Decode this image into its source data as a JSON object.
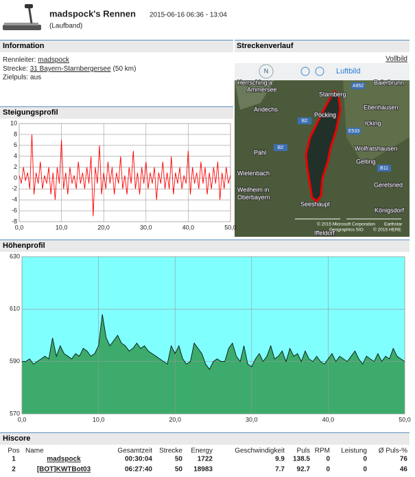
{
  "header": {
    "title": "madspock's Rennen",
    "time": "2015-06-16 06:36 - 13:04",
    "subtitle": "(Laufband)"
  },
  "information": {
    "title": "Information",
    "leader_label": "Rennleiter:",
    "leader": "madspock",
    "route_label": "Strecke:",
    "route": "31 Bayern-Starnbergersee",
    "route_length": "(50 km)",
    "target_pulse": "Zielpuls: aus"
  },
  "map": {
    "title": "Streckenverlauf",
    "fullscreen": "Vollbild",
    "compass": "N",
    "view": "Luftbild",
    "labels": [
      "Herrsching a.",
      "Ammersee",
      "Starnberg",
      "Baierbrunn",
      "Andechs",
      "Pöcking",
      "Ebenhausen",
      "Icking",
      "Wolfratshausen",
      "Pähl",
      "Gelting",
      "Wielenbach",
      "Weilheim in",
      "Oberbayern",
      "Geretsried",
      "Seeshaupt",
      "Königsdorf",
      "Iffeldorf"
    ],
    "roads": [
      "A952",
      "B2",
      "E533",
      "B2",
      "B11"
    ],
    "copyright": [
      "© 2015 Microsoft Corporation",
      "Earthstar",
      "Geographics SIO",
      "© 2015 HERE"
    ]
  },
  "chart_data": [
    {
      "type": "line",
      "title": "Steigungsprofil",
      "color": "#ff0000",
      "grid": true,
      "x": [
        0,
        0.5,
        1,
        1.5,
        2,
        2.5,
        3,
        3.5,
        4,
        4.5,
        5,
        5.5,
        6,
        6.5,
        7,
        7.5,
        8,
        8.5,
        9,
        9.5,
        10,
        10.5,
        11,
        11.5,
        12,
        12.5,
        13,
        13.5,
        14,
        14.5,
        15,
        15.5,
        16,
        16.5,
        17,
        17.5,
        18,
        18.5,
        19,
        19.5,
        20,
        20.5,
        21,
        21.5,
        22,
        22.5,
        23,
        23.5,
        24,
        24.5,
        25,
        25.5,
        26,
        26.5,
        27,
        27.5,
        28,
        28.5,
        29,
        29.5,
        30,
        30.5,
        31,
        31.5,
        32,
        32.5,
        33,
        33.5,
        34,
        34.5,
        35,
        35.5,
        36,
        36.5,
        37,
        37.5,
        38,
        38.5,
        39,
        39.5,
        40,
        40.5,
        41,
        41.5,
        42,
        42.5,
        43,
        43.5,
        44,
        44.5,
        45,
        45.5,
        46,
        46.5,
        47,
        47.5,
        48,
        48.5,
        49,
        49.5,
        50
      ],
      "values": [
        0.5,
        -1,
        2,
        -0.5,
        1,
        -2,
        8,
        -3,
        1,
        -1,
        3,
        -2,
        0.5,
        -1,
        2,
        -3,
        1,
        -4,
        2,
        -1,
        7,
        -2,
        1,
        -3,
        2,
        -1,
        0.5,
        -2,
        3,
        -1,
        1,
        -2,
        2,
        -1,
        4,
        -7,
        2,
        -1,
        6,
        -3,
        1,
        -2,
        3,
        -1,
        2,
        -3,
        1,
        -1,
        4,
        -2,
        0.5,
        -3,
        2,
        -1,
        5,
        -2,
        1,
        -3,
        2,
        -1,
        3,
        -2,
        1,
        -1,
        2,
        -4,
        1,
        -1,
        3,
        -2,
        1,
        -2,
        4,
        -3,
        1,
        -1,
        2,
        -2,
        0.5,
        -1,
        5,
        -3,
        2,
        -1,
        1,
        -2,
        3,
        -1,
        2,
        -3,
        1,
        -2,
        2,
        -1,
        3,
        -4,
        1,
        -2,
        2,
        -1,
        0.5
      ],
      "xlim": [
        0,
        50
      ],
      "ylim": [
        -8,
        10
      ],
      "xticks": [
        {
          "value": 0,
          "label": "0,0"
        },
        {
          "value": 10,
          "label": "10,0"
        },
        {
          "value": 20,
          "label": "20,0"
        },
        {
          "value": 30,
          "label": "30,0"
        },
        {
          "value": 40,
          "label": "40,0"
        },
        {
          "value": 50,
          "label": "50,0"
        }
      ],
      "yticks": [
        -8,
        -6,
        -4,
        -2,
        0,
        2,
        4,
        6,
        8,
        10
      ]
    },
    {
      "type": "area",
      "title": "Höhenprofil",
      "color": "#3cab6c",
      "background": "#80ffff",
      "grid": true,
      "x": [
        0,
        0.5,
        1,
        1.5,
        2,
        2.5,
        3,
        3.5,
        4,
        4.5,
        5,
        5.5,
        6,
        6.5,
        7,
        7.5,
        8,
        8.5,
        9,
        9.5,
        10,
        10.5,
        11,
        11.5,
        12,
        12.5,
        13,
        13.5,
        14,
        14.5,
        15,
        15.5,
        16,
        16.5,
        17,
        17.5,
        18,
        18.5,
        19,
        19.5,
        20,
        20.5,
        21,
        21.5,
        22,
        22.5,
        23,
        23.5,
        24,
        24.5,
        25,
        25.5,
        26,
        26.5,
        27,
        27.5,
        28,
        28.5,
        29,
        29.5,
        30,
        30.5,
        31,
        31.5,
        32,
        32.5,
        33,
        33.5,
        34,
        34.5,
        35,
        35.5,
        36,
        36.5,
        37,
        37.5,
        38,
        38.5,
        39,
        39.5,
        40,
        40.5,
        41,
        41.5,
        42,
        42.5,
        43,
        43.5,
        44,
        44.5,
        45,
        45.5,
        46,
        46.5,
        47,
        47.5,
        48,
        48.5,
        49,
        49.5,
        50
      ],
      "values": [
        590,
        590,
        591,
        589,
        590,
        591,
        592,
        591,
        599,
        592,
        596,
        593,
        592,
        591,
        593,
        592,
        595,
        594,
        592,
        593,
        596,
        608,
        599,
        596,
        598,
        600,
        597,
        596,
        594,
        595,
        597,
        595,
        596,
        594,
        593,
        592,
        591,
        590,
        589,
        596,
        593,
        596,
        591,
        589,
        590,
        597,
        595,
        593,
        589,
        587,
        590,
        591,
        590,
        590,
        595,
        597,
        592,
        590,
        596,
        589,
        588,
        591,
        593,
        590,
        592,
        596,
        591,
        592,
        594,
        590,
        595,
        592,
        593,
        590,
        594,
        591,
        590,
        592,
        590,
        589,
        591,
        593,
        590,
        592,
        591,
        590,
        592,
        594,
        591,
        589,
        592,
        591,
        590,
        593,
        590,
        592,
        591,
        595,
        592,
        591,
        590
      ],
      "xlim": [
        0,
        50
      ],
      "ylim": [
        570,
        630
      ],
      "xticks": [
        {
          "value": 0,
          "label": "0,0"
        },
        {
          "value": 10,
          "label": "10,0"
        },
        {
          "value": 20,
          "label": "20,0"
        },
        {
          "value": 30,
          "label": "30,0"
        },
        {
          "value": 40,
          "label": "40,0"
        },
        {
          "value": 50,
          "label": "50,0"
        }
      ],
      "yticks": [
        570,
        590,
        610,
        630
      ]
    }
  ],
  "hiscore": {
    "title": "Hiscore",
    "columns": [
      "Pos",
      "Name",
      "Gesamtzeit",
      "Strecke",
      "Energy",
      "Geschwindigkeit",
      "Puls",
      "RPM",
      "Leistung",
      "Ø Puls-%"
    ],
    "rows": [
      [
        "1",
        "madspock",
        "00:30:04",
        "50",
        "1722",
        "9.9",
        "138.5",
        "0",
        "0",
        "76"
      ],
      [
        "2",
        "[BOT]KWTBot03",
        "06:27:40",
        "50",
        "18983",
        "7.7",
        "92.7",
        "0",
        "0",
        "46"
      ]
    ]
  }
}
